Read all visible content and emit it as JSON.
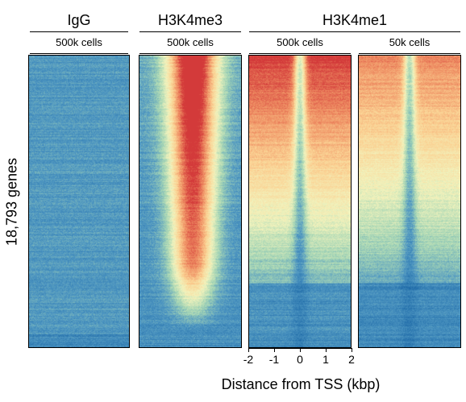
{
  "chart_data": {
    "type": "heatmap",
    "ylabel": "18,793 genes",
    "xlabel": "Distance from TSS (kbp)",
    "x_ticks": [
      "-2",
      "-1",
      "0",
      "1",
      "2"
    ],
    "x_range_kbp": [
      -2,
      2
    ],
    "colormap": [
      "#1e6aa8",
      "#4f97c2",
      "#a6d6b5",
      "#f2f3bd",
      "#fbd293",
      "#ef8f63",
      "#d33a3a"
    ],
    "groups": [
      {
        "name": "IgG",
        "panels": [
          0
        ]
      },
      {
        "name": "H3K4me3",
        "panels": [
          1
        ]
      },
      {
        "name": "H3K4me1",
        "panels": [
          2,
          3
        ]
      }
    ],
    "panels": [
      {
        "mark": "IgG",
        "cells": "500k cells",
        "profile": "uniform_low"
      },
      {
        "mark": "H3K4me3",
        "cells": "500k cells",
        "profile": "tss_centered_peak"
      },
      {
        "mark": "H3K4me1",
        "cells": "500k cells",
        "profile": "flanking_tss_depleted"
      },
      {
        "mark": "H3K4me1",
        "cells": "50k cells",
        "profile": "flanking_tss_depleted"
      }
    ]
  }
}
